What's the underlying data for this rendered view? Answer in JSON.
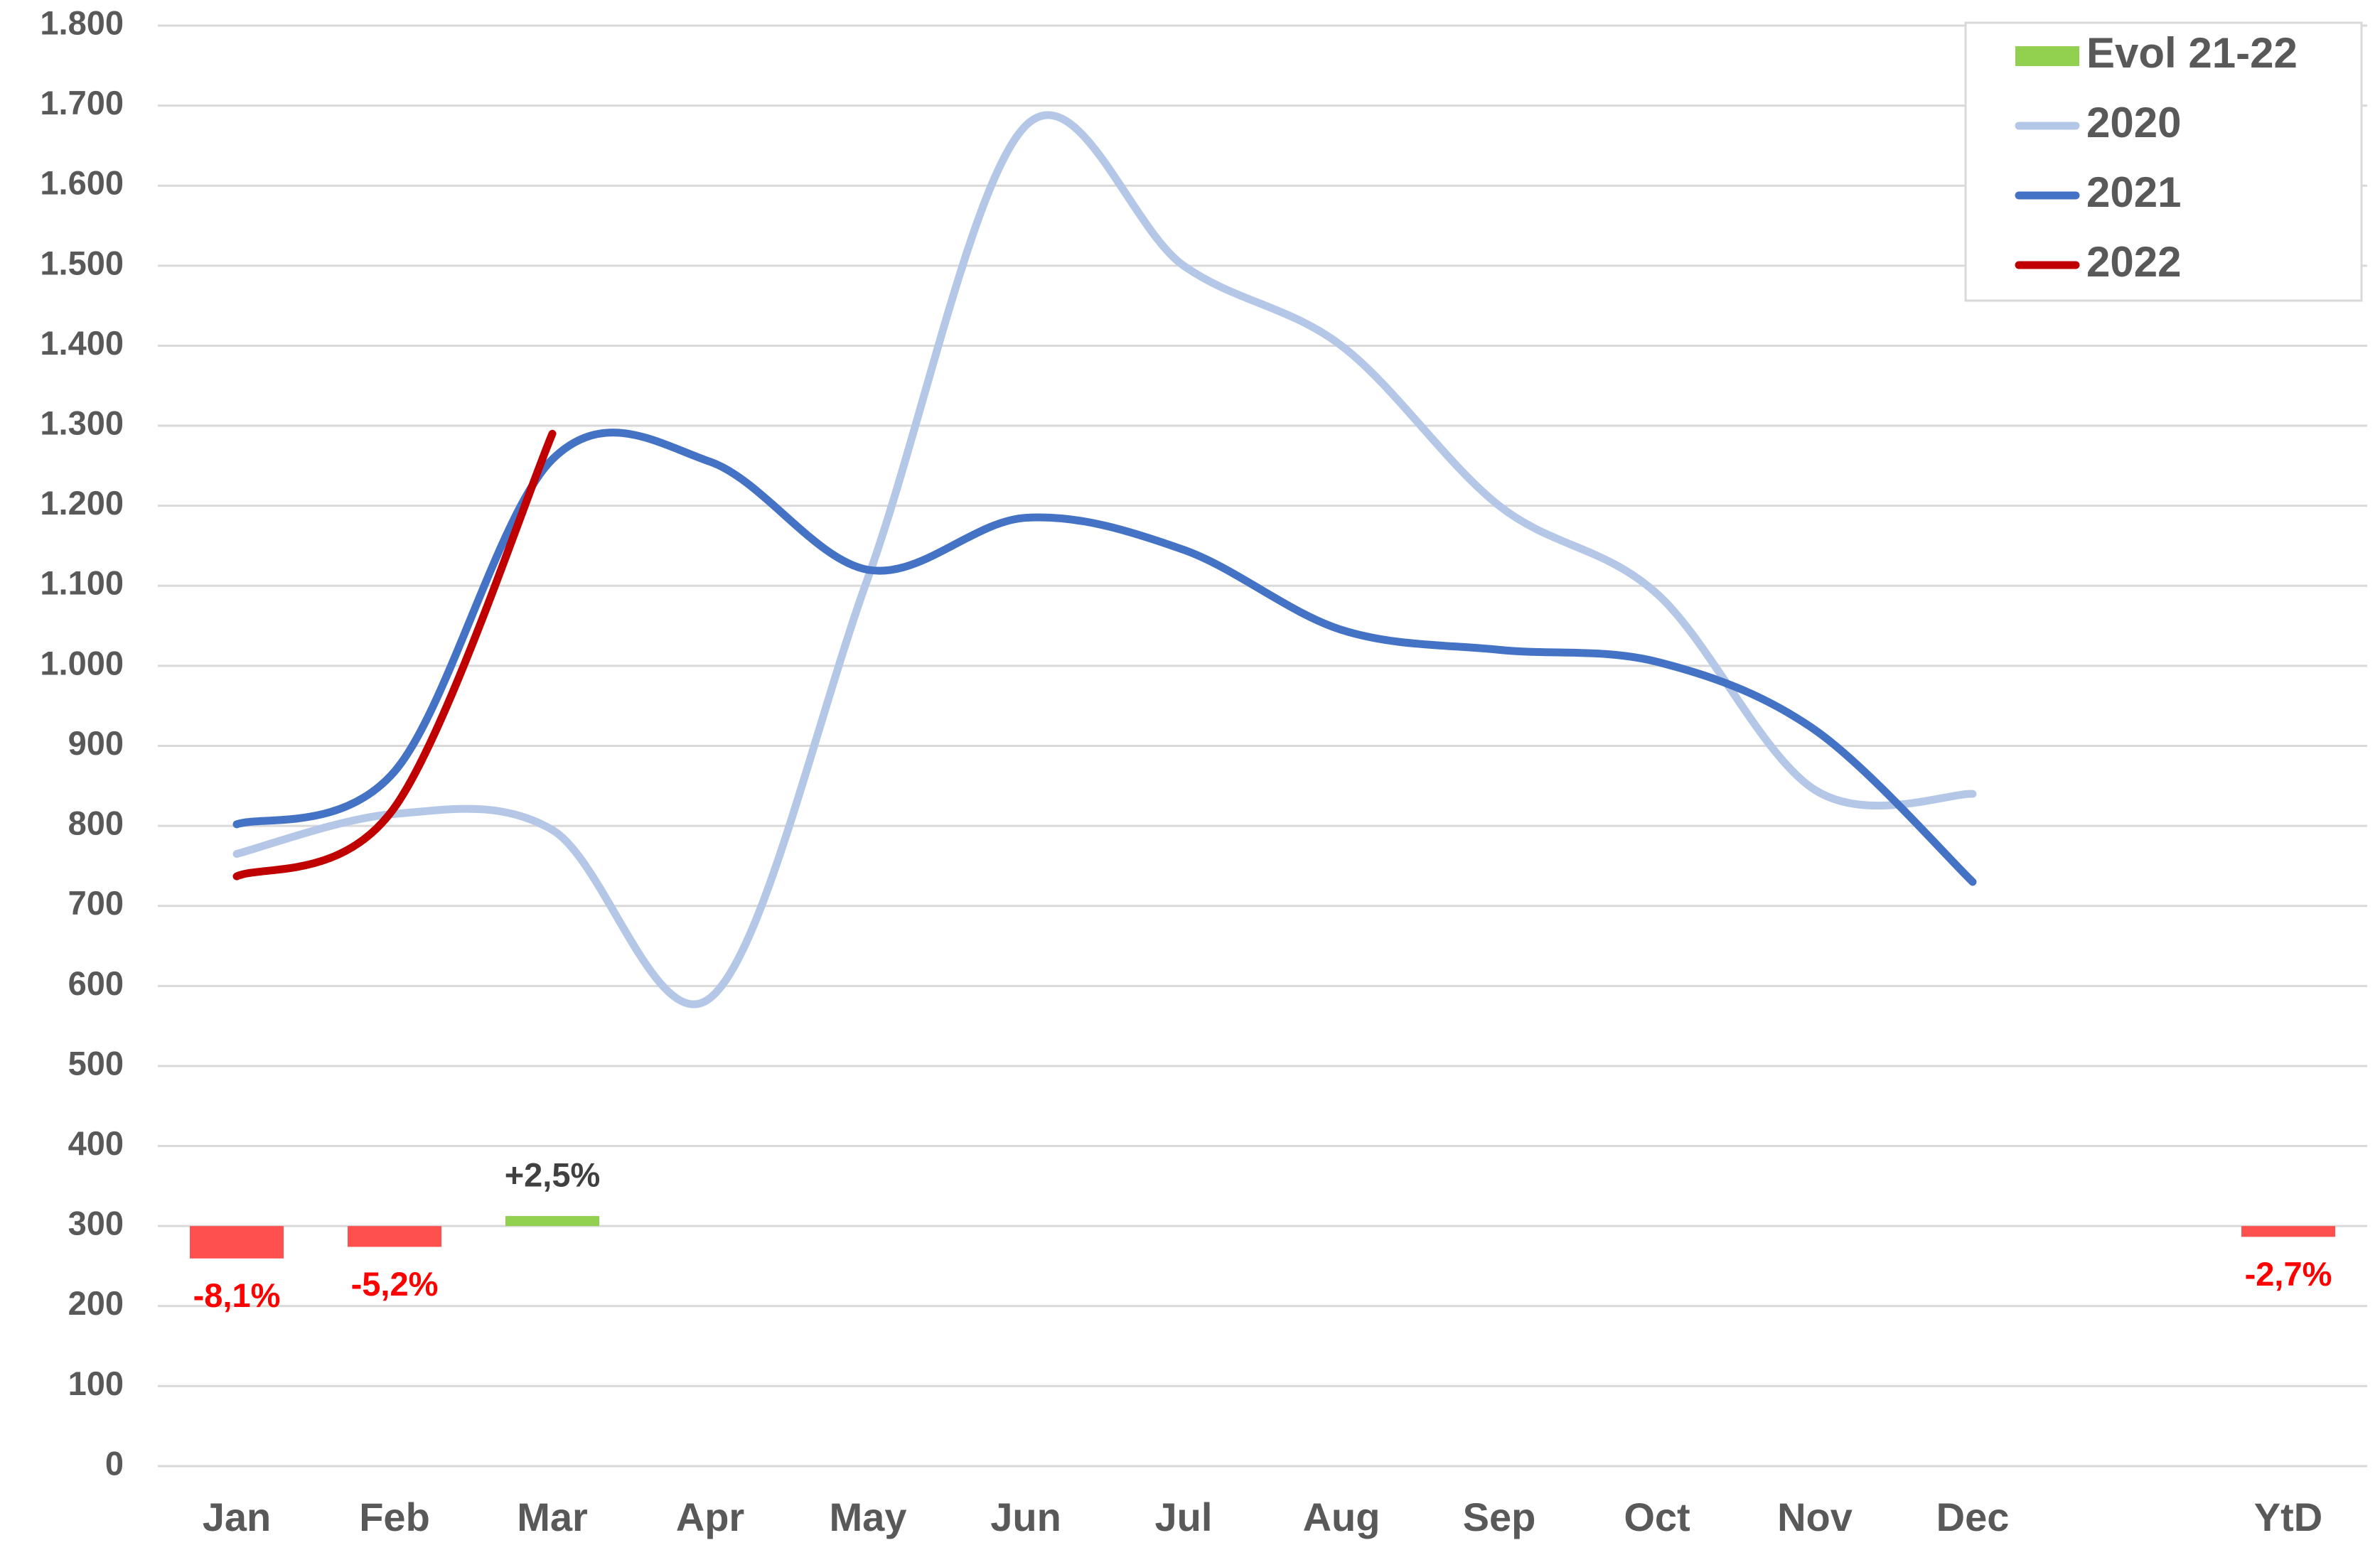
{
  "chart_data": {
    "type": "combo",
    "categories": [
      "Jan",
      "Feb",
      "Mar",
      "Apr",
      "May",
      "Jun",
      "Jul",
      "Aug",
      "Sep",
      "Oct",
      "Nov",
      "Dec",
      null,
      "YtD"
    ],
    "series": [
      {
        "name": "Evol 21-22",
        "type": "bar",
        "axis": "y2",
        "color": "#92d050",
        "negative_color": "#ff5050",
        "values": [
          -8.1,
          -5.2,
          2.5,
          null,
          null,
          null,
          null,
          null,
          null,
          null,
          null,
          null,
          null,
          -2.7
        ],
        "value_labels": [
          "-8,1%",
          "-5,2%",
          "+2,5%",
          null,
          null,
          null,
          null,
          null,
          null,
          null,
          null,
          null,
          null,
          "-2,7%"
        ]
      },
      {
        "name": "2020",
        "type": "line",
        "color": "#b4c7e7",
        "values": [
          765,
          815,
          795,
          585,
          1110,
          1675,
          1500,
          1400,
          1200,
          1090,
          845,
          840,
          null,
          null
        ]
      },
      {
        "name": "2021",
        "type": "line",
        "color": "#4472c4",
        "values": [
          802,
          868,
          1258,
          1255,
          1120,
          1185,
          1145,
          1045,
          1020,
          1005,
          920,
          730,
          null,
          null
        ]
      },
      {
        "name": "2022",
        "type": "line",
        "color": "#c00000",
        "values": [
          737,
          823,
          1290,
          null,
          null,
          null,
          null,
          null,
          null,
          null,
          null,
          null,
          null,
          null
        ]
      }
    ],
    "ylim": [
      0,
      1800
    ],
    "yticks": [
      0,
      100,
      200,
      300,
      400,
      500,
      600,
      700,
      800,
      900,
      {
        "value": 1000,
        "label": "1.000"
      },
      {
        "value": 1100,
        "label": "1.100"
      },
      {
        "value": 1200,
        "label": "1.200"
      },
      {
        "value": 1300,
        "label": "1.300"
      },
      {
        "value": 1400,
        "label": "1.400"
      },
      {
        "value": 1500,
        "label": "1.500"
      },
      {
        "value": 1600,
        "label": "1.600"
      },
      {
        "value": 1700,
        "label": "1.700"
      },
      {
        "value": 1800,
        "label": "1.800"
      }
    ],
    "y2lim": [
      -60,
      300
    ],
    "grid": true,
    "legend": "top-right"
  }
}
